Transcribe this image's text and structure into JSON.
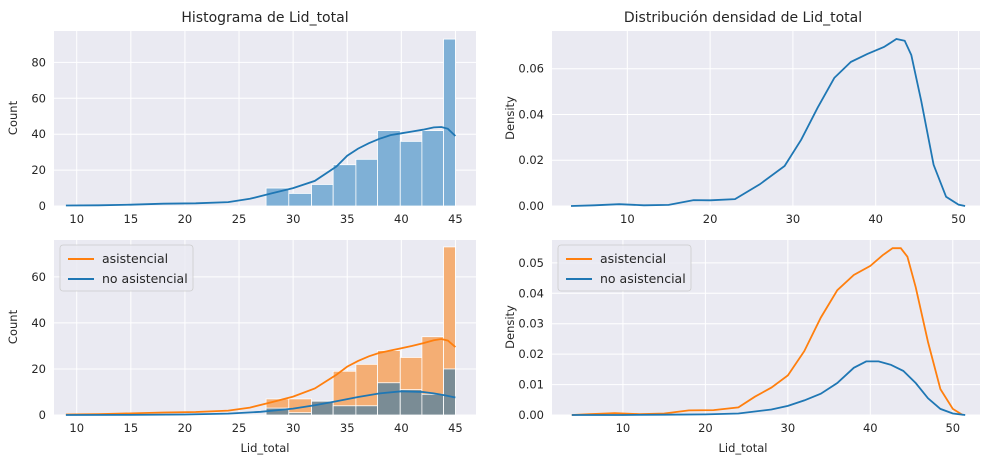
{
  "colors": {
    "background": "#eaeaf2",
    "grid": "#ffffff",
    "blue": "#1f77b4",
    "blue_hist": "#7fb0d6",
    "orange": "#ff7f0e",
    "orange_hist": "#f4ae74",
    "overlap_hist": "#7a8c95"
  },
  "chart_data": [
    {
      "id": "hist_total",
      "type": "bar",
      "title": "Histograma de Lid_total",
      "xlabel": "",
      "ylabel": "Count",
      "xlim": [
        7.9,
        46.9
      ],
      "ylim": [
        0,
        97.5
      ],
      "xticks": [
        10,
        15,
        20,
        25,
        30,
        35,
        40,
        45
      ],
      "yticks": [
        0,
        20,
        40,
        60,
        80
      ],
      "bin_edges": [
        9,
        11.06,
        13.12,
        15.18,
        17.24,
        19.3,
        21.36,
        23.42,
        25.48,
        27.54,
        29.6,
        31.66,
        33.72,
        35.78,
        37.84,
        39.9,
        41.96,
        44,
        45
      ],
      "bins": [
        {
          "x0": 27.5,
          "x1": 29.6,
          "y": 10
        },
        {
          "x0": 29.6,
          "x1": 31.7,
          "y": 7
        },
        {
          "x0": 31.7,
          "x1": 33.7,
          "y": 12
        },
        {
          "x0": 33.7,
          "x1": 35.8,
          "y": 23
        },
        {
          "x0": 35.8,
          "x1": 37.8,
          "y": 26
        },
        {
          "x0": 37.8,
          "x1": 39.9,
          "y": 42
        },
        {
          "x0": 39.9,
          "x1": 41.9,
          "y": 36
        },
        {
          "x0": 41.9,
          "x1": 43.9,
          "y": 42
        },
        {
          "x0": 43.9,
          "x1": 45.0,
          "y": 93
        }
      ],
      "kde": {
        "x": [
          9,
          12,
          15,
          18,
          21,
          24,
          26,
          28,
          30,
          32,
          34,
          35,
          36,
          37,
          38,
          39,
          40,
          41,
          42,
          43,
          43.7,
          44.3,
          45
        ],
        "y": [
          0.3,
          0.4,
          0.7,
          1.3,
          1.5,
          2.2,
          4,
          7,
          10,
          14,
          22,
          28,
          32,
          35,
          37.5,
          39.5,
          40.5,
          41.5,
          42.5,
          43.8,
          44,
          43,
          39
        ]
      },
      "series": [
        {
          "color": "#1f77b4"
        }
      ]
    },
    {
      "id": "density_total",
      "type": "line",
      "title": "Distribución densidad de Lid_total",
      "xlabel": "",
      "ylabel": "Density",
      "xlim": [
        0.9,
        52.6
      ],
      "ylim": [
        0,
        0.0765
      ],
      "xticks": [
        10,
        20,
        30,
        40,
        50
      ],
      "yticks": [
        0.0,
        0.02,
        0.04,
        0.06
      ],
      "ytick_labels": [
        "0.00",
        "0.02",
        "0.04",
        "0.06"
      ],
      "series": [
        {
          "color": "#1f77b4",
          "x": [
            3.2,
            6,
            9,
            12,
            15,
            18,
            20,
            23,
            26,
            29,
            31,
            33,
            35,
            37,
            39,
            41,
            42.5,
            43.5,
            44.3,
            45.5,
            47,
            48.5,
            50,
            50.8
          ],
          "y": [
            0.0,
            0.0003,
            0.0008,
            0.0003,
            0.0005,
            0.0026,
            0.0025,
            0.003,
            0.0095,
            0.0175,
            0.029,
            0.043,
            0.056,
            0.063,
            0.0665,
            0.0695,
            0.073,
            0.0722,
            0.066,
            0.046,
            0.018,
            0.004,
            0.0006,
            0.0
          ]
        }
      ]
    },
    {
      "id": "hist_split",
      "type": "bar",
      "title": "",
      "xlabel": "Lid_total",
      "ylabel": "Count",
      "xlim": [
        7.9,
        46.9
      ],
      "ylim": [
        0,
        76
      ],
      "xticks": [
        10,
        15,
        20,
        25,
        30,
        35,
        40,
        45
      ],
      "yticks": [
        0,
        20,
        40,
        60
      ],
      "legend": {
        "position": "upper-left",
        "entries": [
          {
            "label": "asistencial",
            "color": "#ff7f0e"
          },
          {
            "label": "no asistencial",
            "color": "#1f77b4"
          }
        ]
      },
      "series": [
        {
          "name": "asistencial",
          "color": "#ff7f0e",
          "bins": [
            {
              "x0": 27.5,
              "x1": 29.6,
              "y": 7
            },
            {
              "x0": 29.6,
              "x1": 31.7,
              "y": 7
            },
            {
              "x0": 31.7,
              "x1": 33.7,
              "y": 6
            },
            {
              "x0": 33.7,
              "x1": 35.8,
              "y": 19
            },
            {
              "x0": 35.8,
              "x1": 37.8,
              "y": 22
            },
            {
              "x0": 37.8,
              "x1": 39.9,
              "y": 28
            },
            {
              "x0": 39.9,
              "x1": 41.9,
              "y": 25
            },
            {
              "x0": 41.9,
              "x1": 43.9,
              "y": 34
            },
            {
              "x0": 43.9,
              "x1": 45.0,
              "y": 73
            }
          ],
          "kde": {
            "x": [
              9,
              12,
              15,
              18,
              21,
              24,
              26,
              28,
              30,
              32,
              34,
              35,
              36,
              37,
              38,
              39,
              40,
              41,
              42,
              43,
              43.7,
              44.3,
              45
            ],
            "y": [
              0.2,
              0.4,
              0.7,
              1.1,
              1.3,
              1.9,
              3.2,
              5.5,
              8,
              11.5,
              17.5,
              21,
              23.5,
              25.5,
              27,
              28,
              29,
              30,
              31.2,
              32.5,
              33,
              32.3,
              29.5
            ]
          }
        },
        {
          "name": "no asistencial",
          "color": "#1f77b4",
          "bins": [
            {
              "x0": 27.5,
              "x1": 29.6,
              "y": 3
            },
            {
              "x0": 29.6,
              "x1": 31.7,
              "y": 1
            },
            {
              "x0": 31.7,
              "x1": 33.7,
              "y": 6
            },
            {
              "x0": 33.7,
              "x1": 35.8,
              "y": 4
            },
            {
              "x0": 35.8,
              "x1": 37.8,
              "y": 4
            },
            {
              "x0": 37.8,
              "x1": 39.9,
              "y": 14
            },
            {
              "x0": 39.9,
              "x1": 41.9,
              "y": 11
            },
            {
              "x0": 41.9,
              "x1": 43.9,
              "y": 9
            },
            {
              "x0": 43.9,
              "x1": 45.0,
              "y": 20
            }
          ],
          "kde": {
            "x": [
              9,
              15,
              20,
              24,
              27,
              30,
              32,
              34,
              36,
              38,
              40,
              42,
              43,
              44,
              45
            ],
            "y": [
              0.0,
              0.05,
              0.2,
              0.6,
              1.4,
              2.8,
              4.2,
              6,
              7.8,
              9.4,
              10.3,
              10,
              9.4,
              8.6,
              7.6
            ]
          }
        }
      ]
    },
    {
      "id": "density_split",
      "type": "line",
      "title": "",
      "xlabel": "Lid_total",
      "ylabel": "Density",
      "xlim": [
        1.4,
        53.3
      ],
      "ylim": [
        0,
        0.0575
      ],
      "xticks": [
        10,
        20,
        30,
        40,
        50
      ],
      "yticks": [
        0.0,
        0.01,
        0.02,
        0.03,
        0.04,
        0.05
      ],
      "ytick_labels": [
        "0.00",
        "0.01",
        "0.02",
        "0.03",
        "0.04",
        "0.05"
      ],
      "legend": {
        "position": "upper-left",
        "entries": [
          {
            "label": "asistencial",
            "color": "#ff7f0e"
          },
          {
            "label": "no asistencial",
            "color": "#1f77b4"
          }
        ]
      },
      "series": [
        {
          "name": "asistencial",
          "color": "#ff7f0e",
          "x": [
            3.8,
            6,
            9,
            12,
            15,
            18,
            21,
            24,
            26,
            28,
            30,
            32,
            34,
            36,
            38,
            40,
            41.5,
            42.7,
            43.7,
            44.5,
            45.5,
            47,
            48.5,
            50,
            51.2
          ],
          "y": [
            0.0,
            0.0003,
            0.0006,
            0.0003,
            0.0005,
            0.0015,
            0.0016,
            0.0025,
            0.006,
            0.009,
            0.013,
            0.021,
            0.032,
            0.041,
            0.046,
            0.049,
            0.0525,
            0.0548,
            0.0548,
            0.052,
            0.042,
            0.024,
            0.0085,
            0.002,
            0.0
          ]
        },
        {
          "name": "no asistencial",
          "color": "#1f77b4",
          "x": [
            3.8,
            10,
            15,
            20,
            24,
            28,
            30,
            32,
            34,
            36,
            38,
            39.5,
            41,
            42.5,
            44,
            45.5,
            47,
            48.5,
            50,
            51.5
          ],
          "y": [
            0.0,
            0.0,
            0.0001,
            0.0002,
            0.0005,
            0.0018,
            0.003,
            0.0048,
            0.007,
            0.0105,
            0.0155,
            0.0176,
            0.0176,
            0.0165,
            0.0145,
            0.0105,
            0.0055,
            0.002,
            0.0005,
            0.0
          ]
        }
      ]
    }
  ]
}
